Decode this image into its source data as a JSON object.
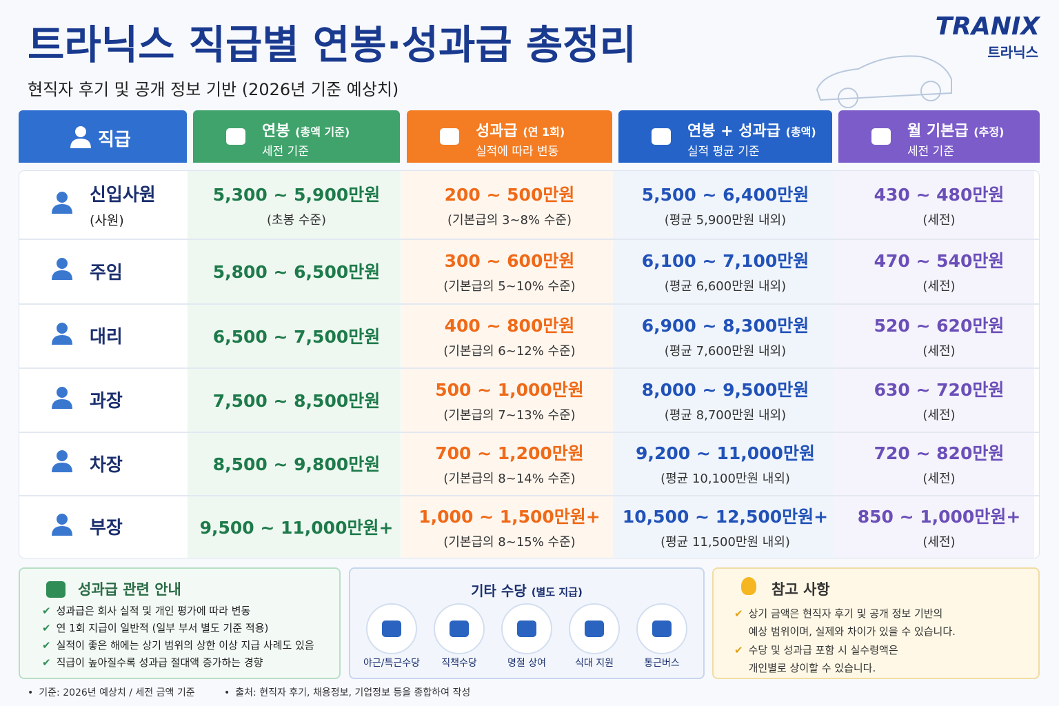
{
  "header": {
    "title": "트라닉스 직급별 연봉·성과급 총정리",
    "subtitle": "현직자 후기 및 공개 정보 기반 (2026년 기준 예상치)",
    "brand": "TRANIX",
    "brand_sub": "트라닉스"
  },
  "table": {
    "columns": [
      {
        "title": "직급"
      },
      {
        "title": "연봉",
        "title_note": "(총액 기준)",
        "sub": "세전 기준"
      },
      {
        "title": "성과급",
        "title_note": "(연 1회)",
        "sub": "실적에 따라 변동"
      },
      {
        "title": "연봉 + 성과급",
        "title_note": "(총액)",
        "sub": "실적 평균 기준"
      },
      {
        "title": "월 기본급",
        "title_note": "(추정)",
        "sub": "세전 기준"
      }
    ],
    "rows": [
      {
        "rank": "신입사원",
        "rank_sub": "(사원)",
        "salary": "5,300 ~ 5,900만원",
        "salary_note": "(초봉 수준)",
        "bonus": "200 ~ 500만원",
        "bonus_note": "(기본급의 3~8% 수준)",
        "total": "5,500 ~ 6,400만원",
        "total_note": "(평균 5,900만원 내외)",
        "monthly": "430 ~ 480만원",
        "monthly_note": "(세전)"
      },
      {
        "rank": "주임",
        "salary": "5,800 ~ 6,500만원",
        "bonus": "300 ~ 600만원",
        "bonus_note": "(기본급의 5~10% 수준)",
        "total": "6,100 ~ 7,100만원",
        "total_note": "(평균 6,600만원 내외)",
        "monthly": "470 ~ 540만원",
        "monthly_note": "(세전)"
      },
      {
        "rank": "대리",
        "salary": "6,500 ~ 7,500만원",
        "bonus": "400 ~ 800만원",
        "bonus_note": "(기본급의 6~12% 수준)",
        "total": "6,900 ~ 8,300만원",
        "total_note": "(평균 7,600만원 내외)",
        "monthly": "520 ~ 620만원",
        "monthly_note": "(세전)"
      },
      {
        "rank": "과장",
        "salary": "7,500 ~ 8,500만원",
        "bonus": "500 ~ 1,000만원",
        "bonus_note": "(기본급의 7~13% 수준)",
        "total": "8,000 ~ 9,500만원",
        "total_note": "(평균 8,700만원 내외)",
        "monthly": "630 ~ 720만원",
        "monthly_note": "(세전)"
      },
      {
        "rank": "차장",
        "salary": "8,500 ~ 9,800만원",
        "bonus": "700 ~ 1,200만원",
        "bonus_note": "(기본급의 8~14% 수준)",
        "total": "9,200 ~ 11,000만원",
        "total_note": "(평균 10,100만원 내외)",
        "monthly": "720 ~ 820만원",
        "monthly_note": "(세전)"
      },
      {
        "rank": "부장",
        "salary": "9,500 ~ 11,000만원+",
        "bonus": "1,000 ~ 1,500만원+",
        "bonus_note": "(기본급의 8~15% 수준)",
        "total": "10,500 ~ 12,500만원+",
        "total_note": "(평균 11,500만원 내외)",
        "monthly": "850 ~ 1,000만원+",
        "monthly_note": "(세전)"
      }
    ]
  },
  "bonus_info": {
    "title": "성과급 관련 안내",
    "items": [
      "성과급은 회사 실적 및 개인 평가에 따라 변동",
      "연 1회 지급이 일반적 (일부 부서 별도 기준 적용)",
      "실적이 좋은 해에는 상기 범위의 상한 이상 지급 사례도 있음",
      "직급이 높아질수록 성과급 절대액 증가하는 경향"
    ]
  },
  "allowances": {
    "title": "기타 수당",
    "title_note": "(별도 지급)",
    "items": [
      "야근/특근수당",
      "직책수당",
      "명절 상여",
      "식대 지원",
      "통근버스"
    ]
  },
  "notes": {
    "title": "참고 사항",
    "items": [
      [
        "상기 금액은 현직자 후기 및 공개 정보 기반의",
        "예상 범위이며, 실제와 차이가 있을 수 있습니다."
      ],
      [
        "수당 및 성과급 포함 시 실수령액은",
        "개인별로 상이할 수 있습니다."
      ]
    ]
  },
  "footer": {
    "items": [
      "기준: 2026년 예상치 / 세전 금액 기준",
      "출처: 현직자 후기, 채용정보, 기업정보 등을 종합하여 작성"
    ]
  }
}
